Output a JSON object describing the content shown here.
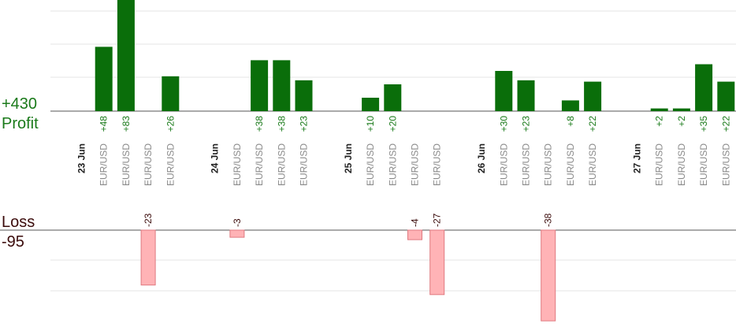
{
  "chart_data": {
    "type": "bar",
    "profit_total": "+430",
    "profit_label": "Profit",
    "loss_label": "Loss",
    "loss_total": "-95",
    "categories": [
      {
        "label": "23 Jun",
        "kind": "date"
      },
      {
        "label": "EUR/USD",
        "value": 48
      },
      {
        "label": "EUR/USD",
        "value": 83
      },
      {
        "label": "EUR/USD",
        "value": -23
      },
      {
        "label": "EUR/USD",
        "value": 26
      },
      {
        "label": "",
        "kind": "gap"
      },
      {
        "label": "24 Jun",
        "kind": "date"
      },
      {
        "label": "EUR/USD",
        "value": -3
      },
      {
        "label": "EUR/USD",
        "value": 38
      },
      {
        "label": "EUR/USD",
        "value": 38
      },
      {
        "label": "EUR/USD",
        "value": 23
      },
      {
        "label": "",
        "kind": "gap"
      },
      {
        "label": "25 Jun",
        "kind": "date"
      },
      {
        "label": "EUR/USD",
        "value": 10
      },
      {
        "label": "EUR/USD",
        "value": 20
      },
      {
        "label": "EUR/USD",
        "value": -4
      },
      {
        "label": "EUR/USD",
        "value": -27
      },
      {
        "label": "",
        "kind": "gap"
      },
      {
        "label": "26 Jun",
        "kind": "date"
      },
      {
        "label": "EUR/USD",
        "value": 30
      },
      {
        "label": "EUR/USD",
        "value": 23
      },
      {
        "label": "EUR/USD",
        "value": -38
      },
      {
        "label": "EUR/USD",
        "value": 8
      },
      {
        "label": "EUR/USD",
        "value": 22
      },
      {
        "label": "",
        "kind": "gap"
      },
      {
        "label": "27 Jun",
        "kind": "date"
      },
      {
        "label": "EUR/USD",
        "value": 2
      },
      {
        "label": "EUR/USD",
        "value": 2
      },
      {
        "label": "EUR/USD",
        "value": 35
      },
      {
        "label": "EUR/USD",
        "value": 22
      }
    ],
    "grid": true,
    "colors": {
      "profit": "#0a6e0a",
      "profit_text": "#1a7a1a",
      "loss_fill": "#ffb3b6",
      "loss_stroke": "#e07a80",
      "loss_text": "#3a0a0a",
      "grid": "#e6e6e6",
      "axis": "#555555",
      "category_text": "#8a8a8a",
      "date_text": "#222222"
    }
  }
}
